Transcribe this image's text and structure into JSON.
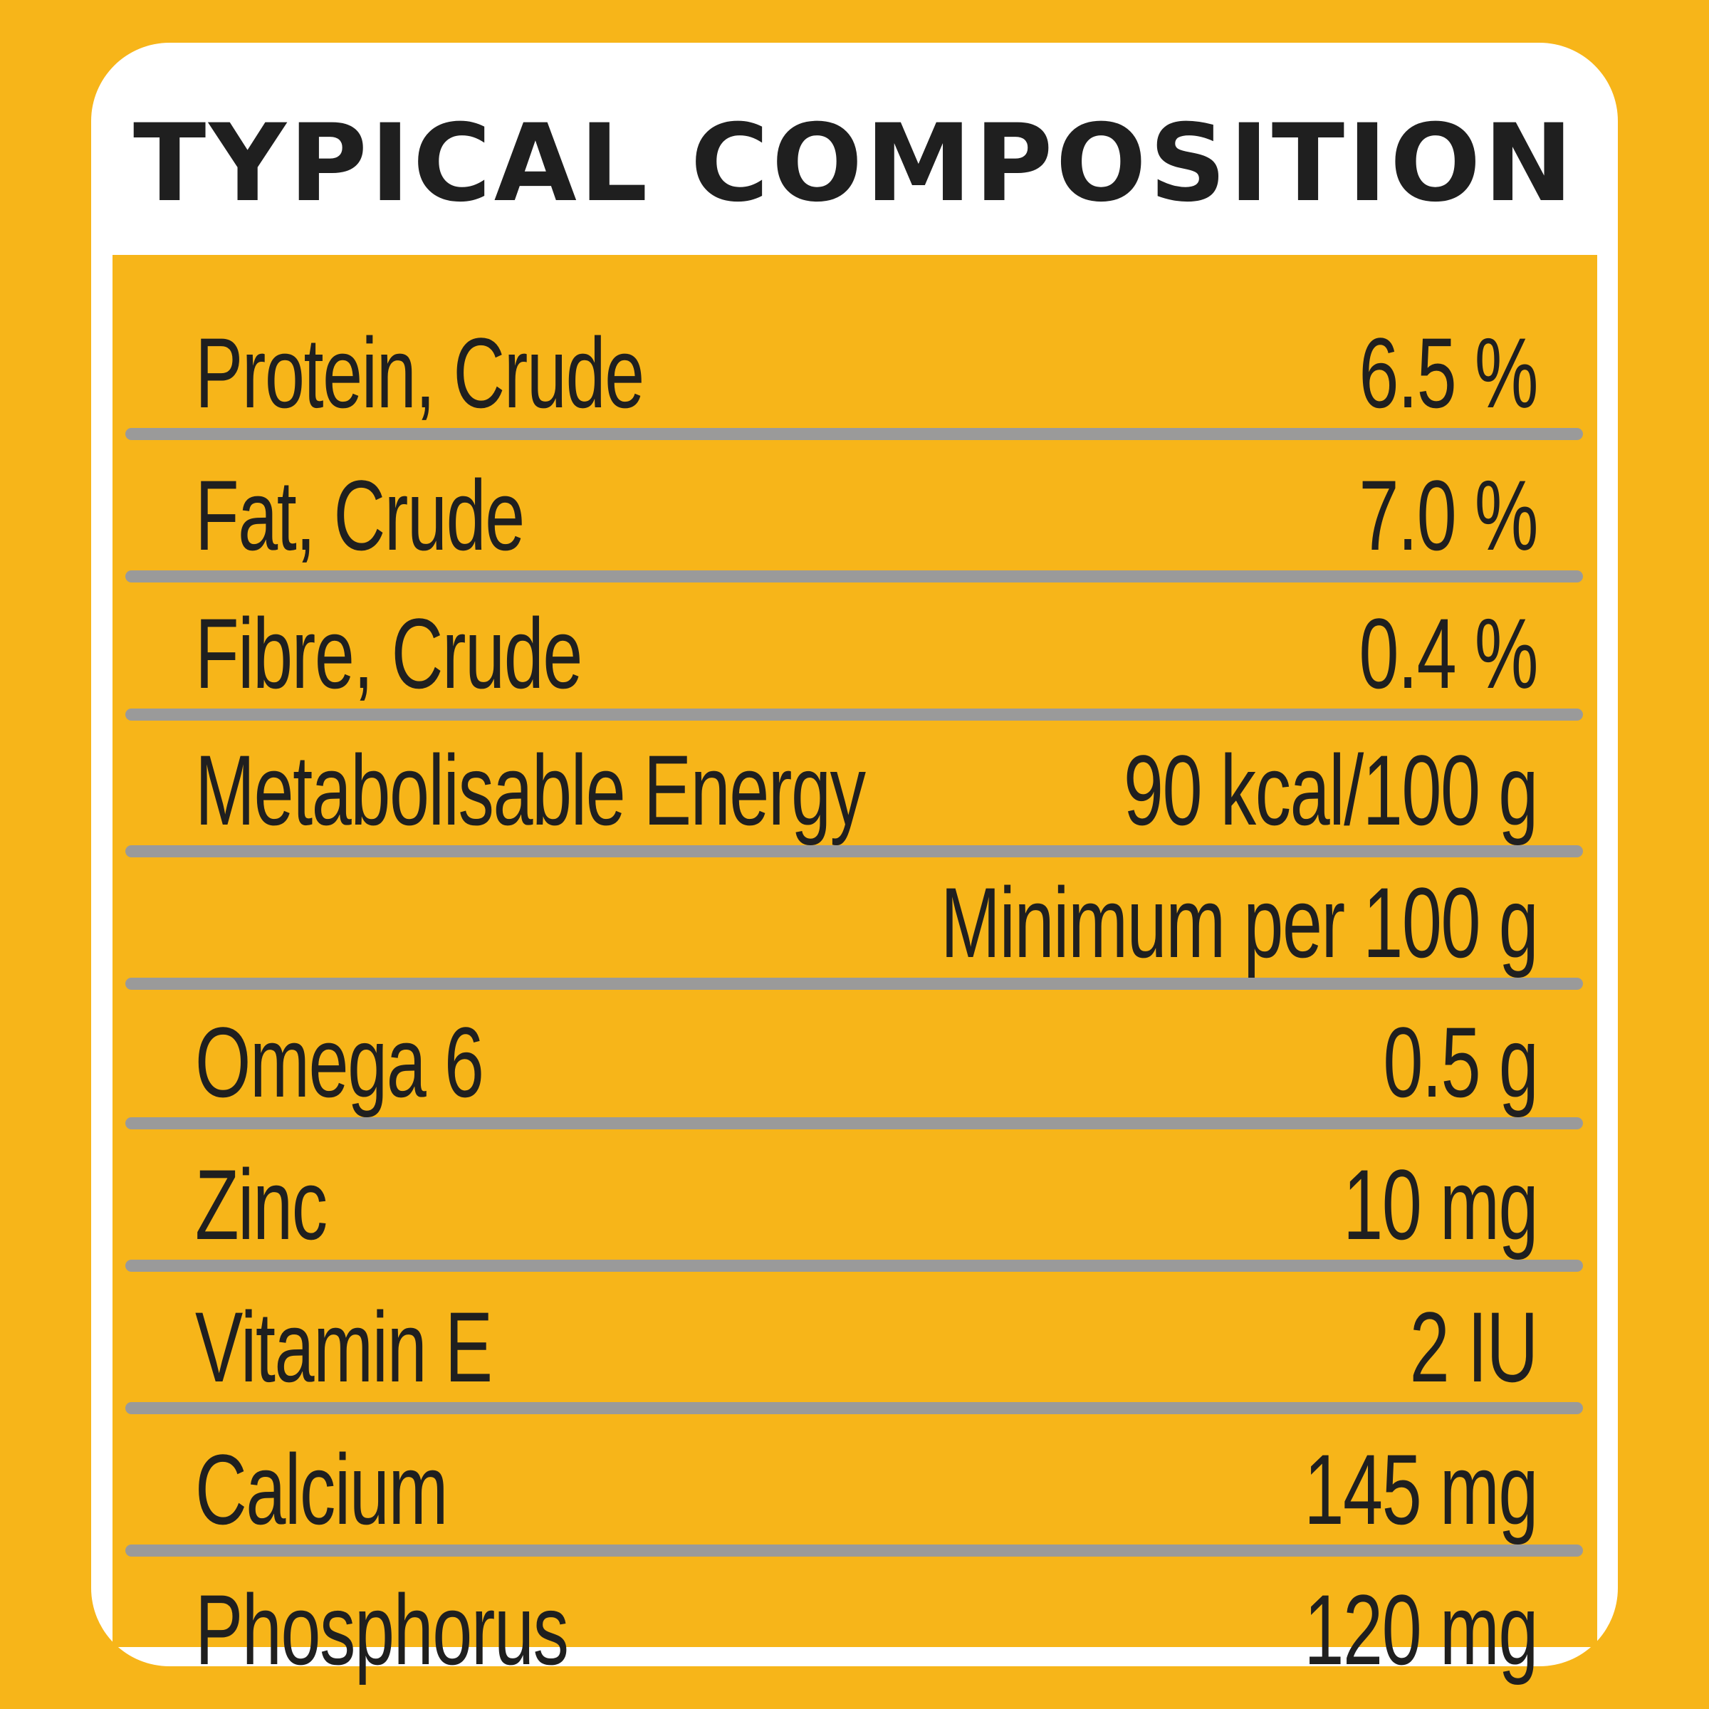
{
  "title": "TYPICAL COMPOSITION",
  "rows": [
    {
      "name": "Protein, Crude",
      "value": "6.5 %"
    },
    {
      "name": "Fat, Crude",
      "value": "7.0 %"
    },
    {
      "name": "Fibre, Crude",
      "value": "0.4 %"
    },
    {
      "name": "Metabolisable Energy",
      "value": "90 kcal/100 g"
    },
    {
      "name": "",
      "value": "Minimum per 100 g"
    },
    {
      "name": "Omega 6",
      "value": "0.5 g"
    },
    {
      "name": "Zinc",
      "value": "10 mg"
    },
    {
      "name": "Vitamin E",
      "value": "2 IU"
    },
    {
      "name": "Calcium",
      "value": "145 mg"
    },
    {
      "name": "Phosphorus",
      "value": "120 mg"
    }
  ],
  "colors": {
    "background": "#F7B519",
    "card": "#FFFFFF",
    "text": "#1F1F1F",
    "divider": "#9A9A9A"
  }
}
